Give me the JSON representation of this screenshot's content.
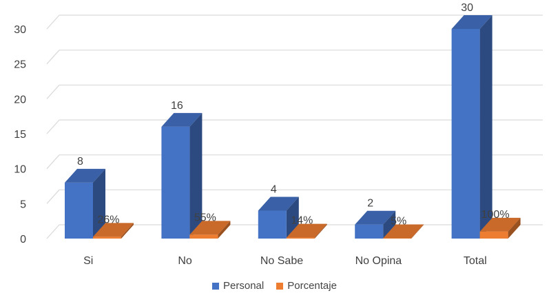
{
  "chart_data": {
    "type": "bar",
    "categories": [
      "Si",
      "No",
      "No Sabe",
      "No Opina",
      "Total"
    ],
    "series": [
      {
        "name": "Personal",
        "values": [
          8,
          16,
          4,
          2,
          30
        ],
        "labels": [
          "8",
          "16",
          "4",
          "2",
          "30"
        ],
        "color": "#4472C4"
      },
      {
        "name": "Porcentaje",
        "values": [
          0.26,
          0.55,
          0.14,
          0.05,
          1.0
        ],
        "labels": [
          "26%",
          "55%",
          "14%",
          "5%",
          "100%"
        ],
        "color": "#ED7D31"
      }
    ],
    "yticks": [
      "0",
      "5",
      "10",
      "15",
      "20",
      "25",
      "30"
    ],
    "ylim": [
      0,
      30
    ],
    "grid": true,
    "legend_position": "bottom"
  }
}
